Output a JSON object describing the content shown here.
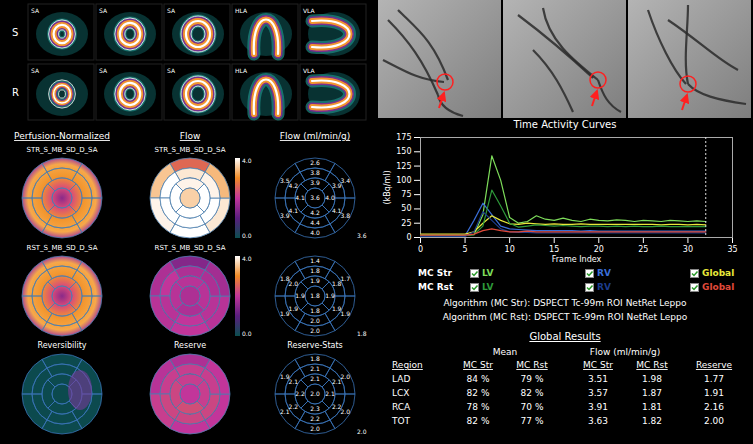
{
  "spect": {
    "rows": [
      "S",
      "R"
    ],
    "columns": [
      "SA",
      "SA",
      "SA",
      "HLA",
      "VLA"
    ]
  },
  "polar_maps": {
    "headers": [
      "Perfusion-Normalized",
      "Flow",
      "Flow (ml/min/g)"
    ],
    "rows": [
      {
        "label": "STR_S_MB_SD_D_SA",
        "segment_values": [
          "2.6",
          "3.5",
          "3.9",
          "4.0",
          "3.8",
          "3.4",
          "3.8",
          "4.2",
          "4.1",
          "4.4",
          "4.1",
          "3.9",
          "3.9",
          "4.1",
          "4.2",
          "4.0",
          "3.6"
        ],
        "global": "3.6"
      },
      {
        "label": "RST_S_MB_SD_D_SA",
        "segment_values": [
          "1.4",
          "1.8",
          "1.9",
          "2.0",
          "1.9",
          "1.7",
          "1.8",
          "2.0",
          "1.9",
          "2.0",
          "1.9",
          "1.8",
          "1.9",
          "1.9",
          "1.8",
          "1.9",
          "1.8"
        ],
        "global": "1.8"
      }
    ],
    "bottom_labels": [
      "Reversibility",
      "Reserve",
      "Reserve-Stats"
    ],
    "reserve": {
      "segment_values": [
        "1.8",
        "1.9",
        "2.1",
        "2.0",
        "2.0",
        "2.0",
        "2.1",
        "2.1",
        "2.2",
        "2.2",
        "2.2",
        "2.1",
        "2.1",
        "2.2",
        "2.3",
        "2.1",
        "2.0"
      ],
      "global": "2.0"
    },
    "colorbar": {
      "range": [
        0,
        4
      ],
      "ticks": [
        {
          "value": 4,
          "label": "4.0"
        },
        {
          "value": 0,
          "label": "0.0"
        }
      ]
    }
  },
  "chart_data": {
    "type": "line",
    "title": "Time Activity Curves",
    "x_label": "Frame Index",
    "y_label": "(kBq/ml)",
    "x": [
      0,
      1,
      2,
      3,
      4,
      5,
      6,
      7,
      8,
      9,
      10,
      11,
      12,
      13,
      14,
      15,
      16,
      17,
      18,
      19,
      20,
      21,
      22,
      23,
      24,
      25,
      26,
      27,
      28,
      29,
      30,
      31,
      32
    ],
    "xlim": [
      0,
      35
    ],
    "ylim": [
      0,
      175
    ],
    "xticks": [
      0,
      5,
      10,
      15,
      20,
      25,
      30,
      35
    ],
    "yticks": [
      0,
      25,
      50,
      75,
      100,
      125,
      150,
      175
    ],
    "cursor_x": 32,
    "series": [
      {
        "group": "MC Str",
        "name": "LV",
        "color": "#7ddc5a",
        "values": [
          5,
          5,
          5,
          5,
          5,
          4,
          5,
          40,
          143,
          100,
          35,
          25,
          28,
          38,
          32,
          30,
          34,
          30,
          28,
          32,
          30,
          29,
          31,
          30,
          28,
          30,
          29,
          28,
          30,
          29,
          28,
          29,
          28
        ]
      },
      {
        "group": "MC Str",
        "name": "RV",
        "color": "#3a6ed8",
        "values": [
          3,
          3,
          3,
          3,
          3,
          3,
          30,
          60,
          40,
          20,
          15,
          14,
          13,
          12,
          12,
          12,
          12,
          12,
          11,
          12,
          11,
          11,
          11,
          11,
          11,
          11,
          11,
          11,
          11,
          11,
          11,
          11,
          11
        ]
      },
      {
        "group": "MC Str",
        "name": "Global",
        "color": "#e8e83a",
        "values": [
          6,
          6,
          6,
          6,
          6,
          6,
          10,
          25,
          38,
          30,
          24,
          23,
          25,
          24,
          23,
          24,
          23,
          23,
          24,
          23,
          23,
          23,
          23,
          23,
          23,
          23,
          23,
          22,
          23,
          23,
          22,
          23,
          22
        ]
      },
      {
        "group": "MC Rst",
        "name": "LV",
        "color": "#2e9a3a",
        "values": [
          4,
          4,
          4,
          4,
          4,
          4,
          5,
          20,
          83,
          55,
          25,
          18,
          20,
          22,
          21,
          20,
          21,
          20,
          19,
          20,
          20,
          19,
          20,
          19,
          20,
          19,
          19,
          20,
          19,
          19,
          19,
          19,
          19
        ]
      },
      {
        "group": "MC Rst",
        "name": "RV",
        "color": "#1c3c8c",
        "values": [
          2,
          2,
          2,
          2,
          2,
          2,
          10,
          45,
          30,
          15,
          10,
          9,
          9,
          8,
          8,
          8,
          8,
          8,
          8,
          8,
          8,
          8,
          8,
          8,
          8,
          8,
          8,
          8,
          8,
          8,
          8,
          8,
          8
        ]
      },
      {
        "group": "MC Rst",
        "name": "Global",
        "color": "#e04a3a",
        "values": [
          4,
          4,
          4,
          4,
          4,
          4,
          6,
          12,
          15,
          12,
          10,
          10,
          11,
          10,
          10,
          10,
          10,
          10,
          10,
          10,
          10,
          10,
          10,
          10,
          10,
          10,
          10,
          10,
          10,
          10,
          10,
          10,
          10
        ]
      }
    ]
  },
  "algorithms": [
    "Algorithm (MC Str): DSPECT Tc-99m ROI NetRet Leppo",
    "Algorithm (MC Rst): DSPECT Tc-99m ROI NetRet Leppo"
  ],
  "table": {
    "title": "Global Results",
    "group_headers": [
      "Mean",
      "Flow (ml/min/g)"
    ],
    "columns": [
      "Region",
      "MC Str",
      "MC Rst",
      "MC Str",
      "MC Rst",
      "Reserve"
    ],
    "rows": [
      [
        "LAD",
        "84 %",
        "79 %",
        "3.51",
        "1.98",
        "1.77"
      ],
      [
        "LCX",
        "82 %",
        "82 %",
        "3.57",
        "1.87",
        "1.91"
      ],
      [
        "RCA",
        "78 %",
        "70 %",
        "3.91",
        "1.81",
        "2.16"
      ],
      [
        "TOT",
        "82 %",
        "77 %",
        "3.63",
        "1.82",
        "2.00"
      ]
    ]
  }
}
